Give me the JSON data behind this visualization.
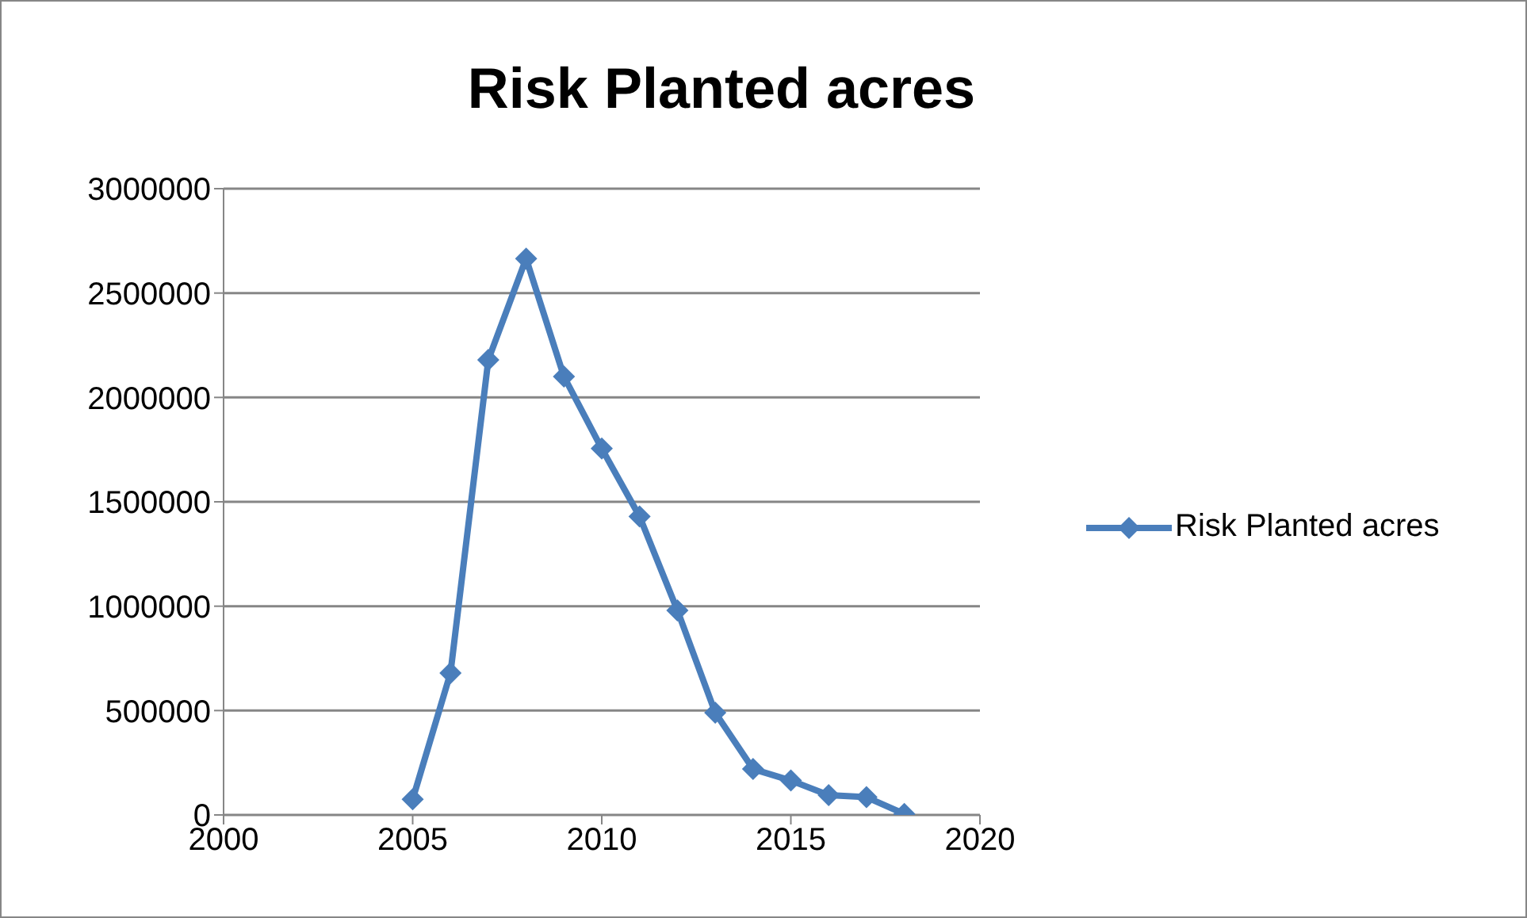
{
  "chart_data": {
    "type": "line",
    "title": "Risk Planted acres",
    "x": [
      2005,
      2006,
      2007,
      2008,
      2009,
      2010,
      2011,
      2012,
      2013,
      2014,
      2015,
      2016,
      2017,
      2018
    ],
    "series": [
      {
        "name": "Risk Planted acres",
        "color": "#4a7ebb",
        "values": [
          75000,
          680000,
          2180000,
          2665000,
          2100000,
          1755000,
          1430000,
          980000,
          490000,
          220000,
          165000,
          95000,
          85000,
          5000
        ]
      }
    ],
    "xlim": [
      2000,
      2020
    ],
    "xticks": [
      2000,
      2005,
      2010,
      2015,
      2020
    ],
    "ylim": [
      0,
      3000000
    ],
    "yticks": [
      0,
      500000,
      1000000,
      1500000,
      2000000,
      2500000,
      3000000
    ],
    "grid": "y",
    "legend": "right",
    "marker": "diamond",
    "line_style": "solid"
  }
}
